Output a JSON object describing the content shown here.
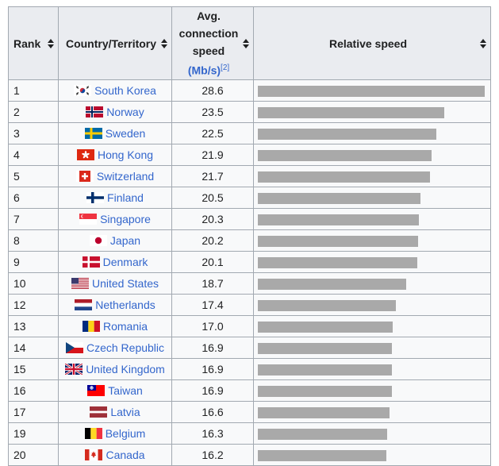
{
  "headers": {
    "rank": "Rank",
    "country": "Country/Territory",
    "speed_line1": "Avg.",
    "speed_line2": "connection",
    "speed_line3": "speed",
    "speed_unit": "(Mb/s)",
    "speed_ref": "[2]",
    "relative": "Relative speed"
  },
  "max_speed": 28.6,
  "rows": [
    {
      "rank": "1",
      "country": "South Korea",
      "speed": "28.6",
      "flag": "south-korea-flag-icon"
    },
    {
      "rank": "2",
      "country": "Norway",
      "speed": "23.5",
      "flag": "norway-flag-icon"
    },
    {
      "rank": "3",
      "country": "Sweden",
      "speed": "22.5",
      "flag": "sweden-flag-icon"
    },
    {
      "rank": "4",
      "country": "Hong Kong",
      "speed": "21.9",
      "flag": "hong-kong-flag-icon"
    },
    {
      "rank": "5",
      "country": "Switzerland",
      "speed": "21.7",
      "flag": "switzerland-flag-icon"
    },
    {
      "rank": "6",
      "country": "Finland",
      "speed": "20.5",
      "flag": "finland-flag-icon"
    },
    {
      "rank": "7",
      "country": "Singapore",
      "speed": "20.3",
      "flag": "singapore-flag-icon"
    },
    {
      "rank": "8",
      "country": "Japan",
      "speed": "20.2",
      "flag": "japan-flag-icon"
    },
    {
      "rank": "9",
      "country": "Denmark",
      "speed": "20.1",
      "flag": "denmark-flag-icon"
    },
    {
      "rank": "10",
      "country": "United States",
      "speed": "18.7",
      "flag": "united-states-flag-icon"
    },
    {
      "rank": "12",
      "country": "Netherlands",
      "speed": "17.4",
      "flag": "netherlands-flag-icon"
    },
    {
      "rank": "13",
      "country": "Romania",
      "speed": "17.0",
      "flag": "romania-flag-icon"
    },
    {
      "rank": "14",
      "country": "Czech Republic",
      "speed": "16.9",
      "flag": "czech-republic-flag-icon"
    },
    {
      "rank": "15",
      "country": "United Kingdom",
      "speed": "16.9",
      "flag": "united-kingdom-flag-icon"
    },
    {
      "rank": "16",
      "country": "Taiwan",
      "speed": "16.9",
      "flag": "taiwan-flag-icon"
    },
    {
      "rank": "17",
      "country": "Latvia",
      "speed": "16.6",
      "flag": "latvia-flag-icon"
    },
    {
      "rank": "19",
      "country": "Belgium",
      "speed": "16.3",
      "flag": "belgium-flag-icon"
    },
    {
      "rank": "20",
      "country": "Canada",
      "speed": "16.2",
      "flag": "canada-flag-icon"
    }
  ]
}
